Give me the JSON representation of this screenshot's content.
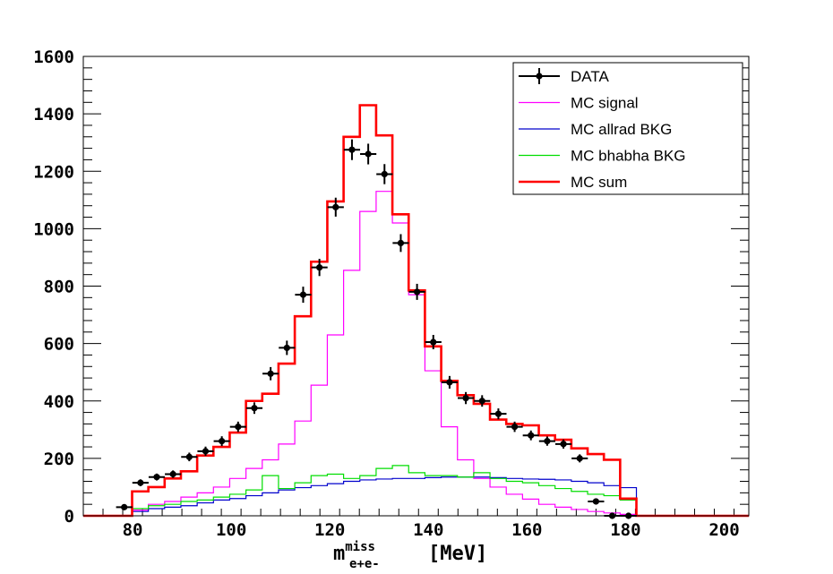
{
  "chart_data": {
    "type": "histogram",
    "xlabel": {
      "base": "m",
      "superscript": "miss",
      "subscript": "e+e-",
      "units": "[MeV]"
    },
    "ylabel": "",
    "xlim": [
      70,
      205
    ],
    "ylim": [
      0,
      1600
    ],
    "xticks": [
      80,
      100,
      120,
      140,
      160,
      180,
      200
    ],
    "yticks": [
      0,
      200,
      400,
      600,
      800,
      1000,
      1200,
      1400,
      1600
    ],
    "bin_edges": [
      70,
      73.3,
      76.6,
      79.9,
      83.2,
      86.5,
      89.8,
      93.1,
      96.4,
      99.7,
      103,
      106.3,
      109.6,
      112.9,
      116.2,
      119.5,
      122.8,
      126.1,
      129.4,
      132.7,
      136,
      139.3,
      142.6,
      145.9,
      149.2,
      152.5,
      155.8,
      159.1,
      162.4,
      165.7,
      169,
      172.3,
      175.6,
      178.9,
      182.2,
      185.5,
      188.8,
      192.1,
      195.4,
      198.7,
      202,
      205
    ],
    "legend": {
      "position": "top-right",
      "entries": [
        {
          "label": "DATA",
          "color": "#000000",
          "style": "marker"
        },
        {
          "label": "MC signal",
          "color": "#ff00ff",
          "style": "line"
        },
        {
          "label": "MC allrad BKG",
          "color": "#0000cc",
          "style": "line"
        },
        {
          "label": "MC bhabha BKG",
          "color": "#00dd00",
          "style": "line"
        },
        {
          "label": "MC sum",
          "color": "#ff0000",
          "style": "thickline"
        }
      ]
    },
    "series": [
      {
        "name": "MC signal",
        "color": "#ff00ff",
        "values": [
          0,
          0,
          0,
          20,
          40,
          50,
          65,
          80,
          100,
          130,
          165,
          195,
          250,
          330,
          455,
          630,
          855,
          1060,
          1130,
          1020,
          770,
          505,
          310,
          195,
          130,
          100,
          75,
          58,
          40,
          30,
          22,
          15,
          10,
          5,
          0,
          0,
          0,
          0,
          0,
          0,
          0
        ]
      },
      {
        "name": "MC allrad BKG",
        "color": "#0000cc",
        "values": [
          0,
          0,
          0,
          15,
          25,
          30,
          35,
          45,
          55,
          60,
          70,
          80,
          90,
          98,
          105,
          112,
          120,
          125,
          128,
          130,
          130,
          133,
          135,
          135,
          135,
          133,
          130,
          128,
          127,
          125,
          120,
          115,
          105,
          98,
          0,
          0,
          0,
          0,
          0,
          0,
          0
        ]
      },
      {
        "name": "MC bhabha BKG",
        "color": "#00dd00",
        "values": [
          0,
          0,
          0,
          25,
          35,
          40,
          50,
          55,
          65,
          75,
          90,
          140,
          95,
          115,
          140,
          145,
          130,
          140,
          165,
          175,
          150,
          140,
          140,
          135,
          150,
          130,
          120,
          115,
          105,
          95,
          85,
          75,
          70,
          55,
          0,
          0,
          0,
          0,
          0,
          0,
          0
        ]
      },
      {
        "name": "MC sum",
        "color": "#ff0000",
        "values": [
          0,
          0,
          0,
          85,
          100,
          130,
          155,
          210,
          240,
          290,
          400,
          425,
          530,
          695,
          885,
          1095,
          1320,
          1430,
          1325,
          1050,
          785,
          590,
          470,
          420,
          390,
          335,
          320,
          315,
          280,
          265,
          235,
          215,
          195,
          60,
          0,
          0,
          0,
          0,
          0,
          0,
          0
        ]
      },
      {
        "name": "DATA",
        "color": "#000000",
        "type": "points",
        "x": [
          78.3,
          81.6,
          84.9,
          88.2,
          91.5,
          94.8,
          98.1,
          101.4,
          104.7,
          108.0,
          111.3,
          114.6,
          117.9,
          121.2,
          124.5,
          127.8,
          131.1,
          134.4,
          137.7,
          141.0,
          144.3,
          147.6,
          150.9,
          154.2,
          157.5,
          160.8,
          164.1,
          167.4,
          170.7,
          174.0,
          177.3,
          180.6
        ],
        "values": [
          30,
          115,
          135,
          145,
          205,
          225,
          260,
          310,
          375,
          495,
          585,
          770,
          865,
          1075,
          1275,
          1260,
          1190,
          950,
          780,
          605,
          465,
          410,
          400,
          355,
          310,
          280,
          260,
          250,
          200,
          50,
          0,
          0
        ],
        "errors": [
          8,
          12,
          12,
          13,
          15,
          16,
          17,
          18,
          20,
          23,
          25,
          28,
          30,
          33,
          36,
          36,
          35,
          31,
          28,
          25,
          22,
          21,
          20,
          19,
          18,
          17,
          16,
          16,
          14,
          7,
          0,
          0
        ]
      }
    ]
  }
}
